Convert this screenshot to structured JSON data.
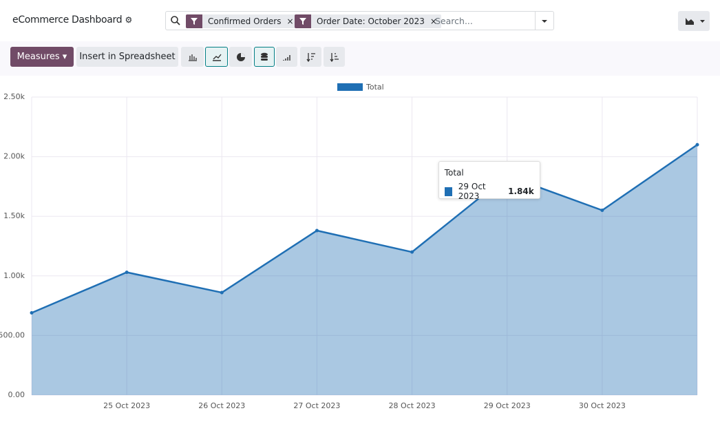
{
  "header": {
    "title": "eCommerce Dashboard",
    "filters": [
      "Confirmed Orders",
      "Order Date: October 2023"
    ],
    "search_placeholder": "Search..."
  },
  "toolbar": {
    "measures": "Measures",
    "insert": "Insert in Spreadsheet"
  },
  "chart_data": {
    "type": "line",
    "area": true,
    "categories": [
      null,
      "25 Oct 2023",
      "26 Oct 2023",
      "27 Oct 2023",
      "28 Oct 2023",
      "29 Oct 2023",
      "30 Oct 2023",
      null
    ],
    "series": [
      {
        "name": "Total",
        "color": "#1f6fb4",
        "values": [
          690,
          1030,
          860,
          1380,
          1200,
          1840,
          1550,
          2100
        ]
      }
    ],
    "ylim": [
      0,
      2500
    ],
    "yticks": [
      {
        "value": 0,
        "label": "0.00"
      },
      {
        "value": 500,
        "label": "500.00"
      },
      {
        "value": 1000,
        "label": "1.00k"
      },
      {
        "value": 1500,
        "label": "1.50k"
      },
      {
        "value": 2000,
        "label": "2.00k"
      },
      {
        "value": 2500,
        "label": "2.50k"
      }
    ],
    "grid": true,
    "legend": "top",
    "tooltip": {
      "category": "29 Oct 2023",
      "label": "1.84k"
    }
  }
}
